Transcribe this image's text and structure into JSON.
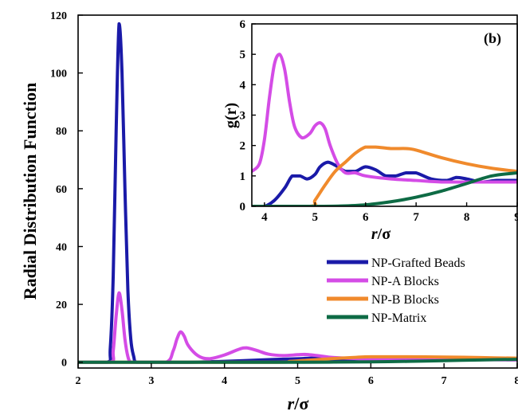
{
  "chart_data": [
    {
      "id": "main",
      "type": "line",
      "xlabel": "",
      "xlabel_parts": [
        "r",
        "/σ"
      ],
      "ylabel": "Radial Distribution Function",
      "xlim": [
        2,
        8
      ],
      "ylim": [
        -2,
        120
      ],
      "xticks": [
        2,
        3,
        4,
        5,
        6,
        7,
        8
      ],
      "yticks": [
        0,
        20,
        40,
        60,
        80,
        100,
        120
      ],
      "legend_position": "lower-right",
      "series": [
        {
          "name": "NP-Grafted Beads",
          "color": "#1a1aa8",
          "x": [
            2.0,
            2.4,
            2.44,
            2.48,
            2.52,
            2.56,
            2.6,
            2.64,
            2.68,
            2.72,
            2.76,
            2.8,
            3.0,
            3.5,
            4.0,
            4.5,
            5.0,
            5.2,
            5.5,
            6.0,
            6.5,
            7.0,
            7.5,
            8.0
          ],
          "y": [
            0,
            0,
            5,
            30,
            80,
            117,
            100,
            60,
            25,
            8,
            2,
            0,
            0,
            0,
            0.3,
            0.8,
            1.2,
            1.4,
            1.0,
            1.3,
            1.1,
            1.0,
            0.9,
            0.9
          ]
        },
        {
          "name": "NP-A Blocks",
          "color": "#d44ce6",
          "x": [
            2.0,
            2.44,
            2.48,
            2.52,
            2.56,
            2.6,
            2.64,
            2.68,
            2.72,
            2.8,
            3.2,
            3.3,
            3.35,
            3.4,
            3.45,
            3.5,
            3.6,
            3.7,
            3.8,
            4.0,
            4.2,
            4.3,
            4.45,
            4.6,
            4.8,
            5.0,
            5.1,
            5.3,
            5.5,
            6.0,
            6.5,
            7.0,
            7.5,
            8.0
          ],
          "y": [
            0,
            0,
            4,
            16,
            24,
            18,
            8,
            2,
            0,
            0,
            0,
            4,
            8,
            10.5,
            9,
            6,
            3,
            1.5,
            1.2,
            2.5,
            4.5,
            5.0,
            4.0,
            2.8,
            2.3,
            2.6,
            2.7,
            2.2,
            1.6,
            1.1,
            1.0,
            1.0,
            0.9,
            0.8
          ]
        },
        {
          "name": "NP-B Blocks",
          "color": "#f08a2c",
          "x": [
            2.0,
            4.6,
            4.9,
            5.2,
            5.5,
            5.8,
            6.0,
            6.5,
            7.0,
            7.5,
            8.0
          ],
          "y": [
            0,
            0,
            0.3,
            0.8,
            1.3,
            1.7,
            1.9,
            1.9,
            1.8,
            1.6,
            1.4
          ]
        },
        {
          "name": "NP-Matrix",
          "color": "#0e6b45",
          "x": [
            2.0,
            5.0,
            5.5,
            6.0,
            6.5,
            7.0,
            7.5,
            8.0
          ],
          "y": [
            0,
            0,
            0.05,
            0.15,
            0.3,
            0.55,
            0.8,
            1.0
          ]
        }
      ]
    },
    {
      "id": "inset",
      "type": "line",
      "panel_label": "(b)",
      "xlabel": "",
      "xlabel_parts": [
        "r",
        "/σ"
      ],
      "ylabel": "g(r)",
      "xlim": [
        3.75,
        9
      ],
      "ylim": [
        0,
        6
      ],
      "xticks": [
        4,
        5,
        6,
        7,
        8,
        9
      ],
      "yticks": [
        0,
        1,
        2,
        3,
        4,
        5,
        6
      ],
      "series": [
        {
          "name": "NP-Grafted Beads",
          "color": "#1a1aa8",
          "x": [
            3.75,
            4.0,
            4.2,
            4.4,
            4.55,
            4.7,
            4.85,
            5.0,
            5.1,
            5.25,
            5.4,
            5.6,
            5.8,
            6.0,
            6.2,
            6.4,
            6.6,
            6.8,
            7.0,
            7.3,
            7.6,
            7.8,
            8.0,
            8.3,
            8.6,
            9.0
          ],
          "y": [
            0,
            0,
            0.2,
            0.6,
            1.0,
            1.0,
            0.9,
            1.05,
            1.3,
            1.45,
            1.35,
            1.15,
            1.15,
            1.3,
            1.2,
            1.0,
            1.0,
            1.1,
            1.1,
            0.9,
            0.85,
            0.95,
            0.9,
            0.8,
            0.85,
            0.85
          ]
        },
        {
          "name": "NP-A Blocks",
          "color": "#d44ce6",
          "x": [
            3.75,
            3.9,
            4.0,
            4.1,
            4.2,
            4.3,
            4.4,
            4.5,
            4.6,
            4.75,
            4.9,
            5.0,
            5.1,
            5.2,
            5.3,
            5.45,
            5.6,
            5.8,
            6.0,
            6.5,
            7.0,
            7.5,
            8.0,
            8.5,
            9.0
          ],
          "y": [
            1.15,
            1.4,
            2.2,
            3.6,
            4.7,
            5.0,
            4.5,
            3.4,
            2.6,
            2.25,
            2.4,
            2.65,
            2.75,
            2.55,
            2.0,
            1.4,
            1.1,
            1.1,
            1.0,
            0.9,
            0.85,
            0.8,
            0.8,
            0.8,
            0.8
          ]
        },
        {
          "name": "NP-B Blocks",
          "color": "#f08a2c",
          "x": [
            3.75,
            4.9,
            5.0,
            5.2,
            5.4,
            5.6,
            5.8,
            6.0,
            6.2,
            6.5,
            6.8,
            7.0,
            7.5,
            8.0,
            8.5,
            9.0
          ],
          "y": [
            0,
            0,
            0.2,
            0.7,
            1.15,
            1.45,
            1.75,
            1.95,
            1.95,
            1.9,
            1.9,
            1.85,
            1.6,
            1.4,
            1.25,
            1.15
          ]
        },
        {
          "name": "NP-Matrix",
          "color": "#0e6b45",
          "x": [
            3.75,
            5.0,
            5.5,
            6.0,
            6.5,
            7.0,
            7.5,
            8.0,
            8.5,
            9.0
          ],
          "y": [
            0,
            0,
            0.01,
            0.05,
            0.15,
            0.3,
            0.5,
            0.75,
            1.0,
            1.1
          ]
        }
      ]
    }
  ]
}
